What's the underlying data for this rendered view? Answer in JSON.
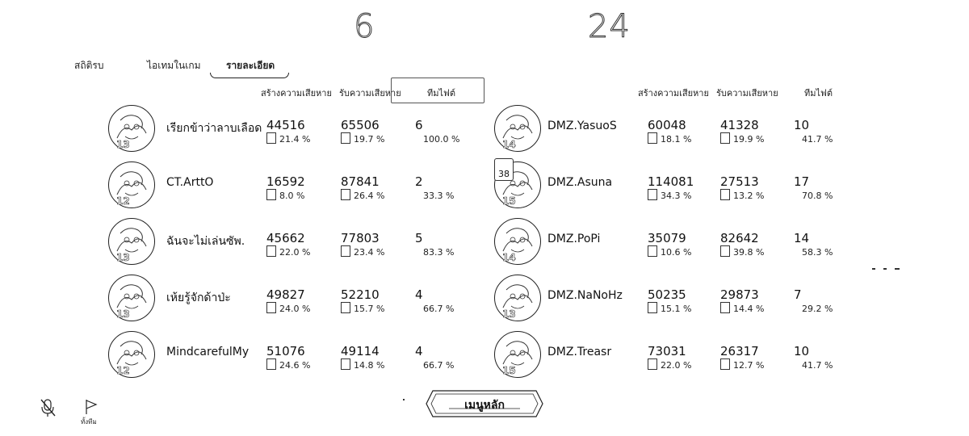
{
  "scores": {
    "left": "6",
    "right": "24"
  },
  "tabs": [
    {
      "label": "สถิติรบ"
    },
    {
      "label": "ไอเทมในเกม"
    },
    {
      "label": "รายละเอียด"
    }
  ],
  "headers": {
    "left": {
      "dealt": "สร้างความเสียหาย",
      "taken": "รับความเสียหาย",
      "fire": "ทีมไฟต์"
    },
    "right": {
      "dealt": "สร้างความเสียหาย",
      "taken": "รับความเสียหาย",
      "fire": "ทีมไฟต์"
    }
  },
  "team_left": [
    {
      "name": "เรียกข้าว่าลาบเลือด",
      "level": "13",
      "dealt": "44516",
      "dealt_pct": "21.4 %",
      "dealt_frac": 0.214,
      "taken": "65506",
      "taken_pct": "19.7 %",
      "taken_frac": 0.197,
      "fire": "6",
      "fire_pct": "100.0 %"
    },
    {
      "name": "CT.ArttO",
      "level": "12",
      "dealt": "16592",
      "dealt_pct": "8.0 %",
      "dealt_frac": 0.08,
      "taken": "87841",
      "taken_pct": "26.4 %",
      "taken_frac": 0.264,
      "fire": "2",
      "fire_pct": "33.3 %"
    },
    {
      "name": "ฉันจะไม่เล่นซัพ.",
      "level": "13",
      "dealt": "45662",
      "dealt_pct": "22.0 %",
      "dealt_frac": 0.22,
      "taken": "77803",
      "taken_pct": "23.4 %",
      "taken_frac": 0.234,
      "fire": "5",
      "fire_pct": "83.3 %"
    },
    {
      "name": "เห้ยรู้จักด้าป่ะ",
      "level": "13",
      "dealt": "49827",
      "dealt_pct": "24.0 %",
      "dealt_frac": 0.24,
      "taken": "52210",
      "taken_pct": "15.7 %",
      "taken_frac": 0.157,
      "fire": "4",
      "fire_pct": "66.7 %"
    },
    {
      "name": "MindcarefulMy",
      "level": "12",
      "dealt": "51076",
      "dealt_pct": "24.6 %",
      "dealt_frac": 0.246,
      "taken": "49114",
      "taken_pct": "14.8 %",
      "taken_frac": 0.148,
      "fire": "4",
      "fire_pct": "66.7 %"
    }
  ],
  "team_right": [
    {
      "name": "DMZ.YasuoS",
      "level": "14",
      "dealt": "60048",
      "dealt_pct": "18.1 %",
      "dealt_frac": 0.181,
      "taken": "41328",
      "taken_pct": "19.9 %",
      "taken_frac": 0.199,
      "fire": "10",
      "fire_pct": "41.7 %"
    },
    {
      "name": "DMZ.Asuna",
      "level": "15",
      "dealt": "114081",
      "dealt_pct": "34.3 %",
      "dealt_frac": 0.343,
      "taken": "27513",
      "taken_pct": "13.2 %",
      "taken_frac": 0.132,
      "fire": "17",
      "fire_pct": "70.8 %"
    },
    {
      "name": "DMZ.PoPi",
      "level": "14",
      "dealt": "35079",
      "dealt_pct": "10.6 %",
      "dealt_frac": 0.106,
      "taken": "82642",
      "taken_pct": "39.8 %",
      "taken_frac": 0.398,
      "fire": "14",
      "fire_pct": "58.3 %"
    },
    {
      "name": "DMZ.NaNoHz",
      "level": "13",
      "dealt": "50235",
      "dealt_pct": "15.1 %",
      "dealt_frac": 0.151,
      "taken": "29873",
      "taken_pct": "14.4 %",
      "taken_frac": 0.144,
      "fire": "7",
      "fire_pct": "29.2 %"
    },
    {
      "name": "DMZ.Treasr",
      "level": "15",
      "dealt": "73031",
      "dealt_pct": "22.0 %",
      "dealt_frac": 0.22,
      "taken": "26317",
      "taken_pct": "12.7 %",
      "taken_frac": 0.127,
      "fire": "10",
      "fire_pct": "41.7 %"
    }
  ],
  "mini_badge": "38",
  "menu_button": "เมนูหลัก",
  "surrender_label": "ทั้งทีม",
  "icons": {
    "mute": "mute-microphone-icon",
    "surrender": "flag-icon",
    "menu_frame": "hexagon-button-frame"
  }
}
